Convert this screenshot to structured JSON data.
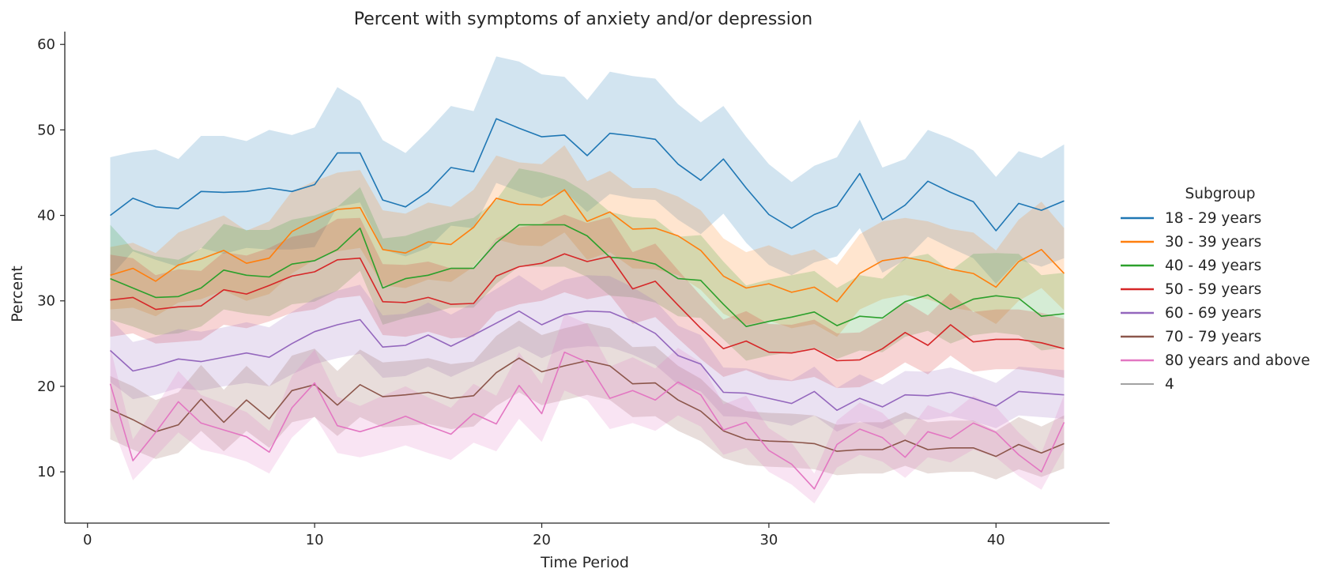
{
  "chart_data": {
    "type": "line",
    "title": "Percent with symptoms of anxiety and/or depression",
    "xlabel": "Time Period",
    "ylabel": "Percent",
    "xlim": [
      -1,
      45
    ],
    "ylim": [
      4,
      61.5
    ],
    "xticks": [
      0,
      10,
      20,
      30,
      40
    ],
    "yticks": [
      10,
      20,
      30,
      40,
      50,
      60
    ],
    "grid": false,
    "legend": {
      "title": "Subgroup",
      "placement": "right",
      "extra_entry": {
        "label": "4",
        "color": "#444444"
      }
    },
    "x": [
      1,
      2,
      3,
      4,
      5,
      6,
      7,
      8,
      9,
      10,
      11,
      12,
      13,
      14,
      15,
      16,
      17,
      18,
      19,
      20,
      21,
      22,
      23,
      24,
      25,
      26,
      27,
      28,
      29,
      30,
      31,
      32,
      33,
      34,
      35,
      36,
      37,
      38,
      39,
      40,
      41,
      42,
      43
    ],
    "series": [
      {
        "name": "18 - 29 years",
        "color": "#1f77b4",
        "values": [
          40.0,
          42.0,
          41.0,
          40.8,
          42.8,
          42.7,
          42.8,
          43.2,
          42.8,
          43.6,
          47.3,
          47.3,
          41.8,
          41.0,
          42.8,
          45.6,
          45.1,
          51.3,
          50.2,
          49.2,
          49.4,
          47.0,
          49.6,
          49.3,
          48.9,
          46.0,
          44.1,
          46.6,
          43.2,
          40.1,
          38.5,
          40.1,
          41.1,
          44.9,
          39.5,
          41.2,
          44.0,
          42.7,
          41.6,
          38.2,
          41.4,
          40.6,
          41.7
        ],
        "lower": [
          32.8,
          35.8,
          34.8,
          34.0,
          36.2,
          35.5,
          36.2,
          36.0,
          36.0,
          36.3,
          41.0,
          41.5,
          36.0,
          35.2,
          36.2,
          38.8,
          38.5,
          43.8,
          42.8,
          42.0,
          42.8,
          40.4,
          42.5,
          42.0,
          41.8,
          39.5,
          37.8,
          40.2,
          36.8,
          34.2,
          33.0,
          34.5,
          35.2,
          38.5,
          33.3,
          34.8,
          37.5,
          36.2,
          35.0,
          32.0,
          34.8,
          34.0,
          35.0
        ],
        "upper": [
          46.8,
          47.4,
          47.7,
          46.6,
          49.3,
          49.3,
          48.7,
          50.0,
          49.4,
          50.3,
          55.0,
          53.4,
          48.8,
          47.3,
          49.9,
          52.8,
          52.2,
          58.6,
          58.0,
          56.5,
          56.2,
          53.5,
          56.8,
          56.3,
          56.0,
          53.0,
          50.9,
          52.8,
          49.2,
          46.0,
          43.9,
          45.8,
          46.8,
          51.2,
          45.6,
          46.6,
          50.0,
          49.0,
          47.6,
          44.5,
          47.5,
          46.7,
          48.3
        ]
      },
      {
        "name": "30 - 39 years",
        "color": "#ff7f0e",
        "values": [
          33.0,
          33.8,
          32.3,
          34.2,
          34.9,
          35.9,
          34.4,
          35.0,
          38.1,
          39.5,
          40.7,
          40.9,
          36.0,
          35.6,
          36.9,
          36.6,
          38.6,
          42.0,
          41.3,
          41.2,
          43.0,
          39.3,
          40.4,
          38.4,
          38.5,
          37.6,
          35.9,
          32.9,
          31.5,
          32.0,
          31.0,
          31.6,
          29.9,
          33.2,
          34.7,
          35.1,
          34.6,
          33.7,
          33.2,
          31.6,
          34.6,
          36.0,
          33.2
        ],
        "lower": [
          29.0,
          29.2,
          28.2,
          29.8,
          30.2,
          31.2,
          30.0,
          30.8,
          33.2,
          34.8,
          35.8,
          36.2,
          31.8,
          31.5,
          32.5,
          32.2,
          34.0,
          37.2,
          36.5,
          36.4,
          38.0,
          34.8,
          35.7,
          33.8,
          33.7,
          33.0,
          31.3,
          28.5,
          27.2,
          27.7,
          26.8,
          27.3,
          25.8,
          29.0,
          30.2,
          30.7,
          30.2,
          29.2,
          28.8,
          27.3,
          30.0,
          31.5,
          28.9
        ],
        "upper": [
          36.3,
          36.8,
          35.6,
          38.0,
          39.0,
          40.0,
          38.2,
          39.3,
          42.8,
          44.0,
          45.0,
          45.3,
          40.6,
          40.2,
          41.5,
          41.0,
          43.0,
          47.0,
          46.2,
          46.0,
          48.2,
          44.0,
          45.2,
          43.2,
          43.2,
          42.2,
          40.6,
          37.3,
          35.7,
          36.5,
          35.3,
          36.0,
          34.2,
          37.8,
          39.3,
          39.7,
          39.3,
          38.4,
          38.0,
          35.9,
          39.5,
          41.6,
          38.5
        ]
      },
      {
        "name": "40 - 49 years",
        "color": "#2ca02c",
        "values": [
          32.6,
          31.5,
          30.4,
          30.5,
          31.5,
          33.6,
          33.0,
          32.8,
          34.3,
          34.7,
          36.0,
          38.5,
          31.5,
          32.6,
          33.0,
          33.8,
          33.8,
          36.8,
          38.9,
          38.9,
          38.9,
          37.6,
          35.1,
          34.9,
          34.3,
          32.6,
          32.4,
          29.6,
          27.0,
          27.6,
          28.1,
          28.7,
          27.1,
          28.2,
          28.0,
          29.9,
          30.7,
          29.0,
          30.2,
          30.6,
          30.3,
          28.2,
          28.5
        ],
        "lower": [
          27.8,
          27.0,
          26.0,
          26.2,
          27.0,
          29.0,
          28.5,
          28.2,
          29.6,
          29.9,
          31.2,
          33.5,
          27.2,
          28.0,
          28.5,
          29.2,
          29.2,
          32.0,
          34.0,
          34.0,
          34.0,
          32.8,
          30.6,
          30.4,
          29.8,
          28.2,
          28.0,
          25.5,
          23.0,
          23.6,
          24.0,
          24.5,
          23.2,
          24.2,
          24.0,
          25.8,
          26.5,
          25.0,
          26.0,
          26.3,
          26.0,
          24.2,
          24.5
        ],
        "upper": [
          38.9,
          36.0,
          35.2,
          34.8,
          36.1,
          39.0,
          38.3,
          38.3,
          39.5,
          40.0,
          41.0,
          43.3,
          37.3,
          37.6,
          38.5,
          39.2,
          39.7,
          41.8,
          45.5,
          45.0,
          44.2,
          42.6,
          40.4,
          39.8,
          39.6,
          37.5,
          37.7,
          34.6,
          31.8,
          32.5,
          33.0,
          33.5,
          31.5,
          33.0,
          32.6,
          35.0,
          35.5,
          33.5,
          35.5,
          35.6,
          35.5,
          33.0,
          33.3
        ]
      },
      {
        "name": "50 - 59 years",
        "color": "#d62728",
        "values": [
          30.1,
          30.4,
          29.0,
          29.3,
          29.4,
          31.3,
          30.8,
          31.8,
          32.9,
          33.4,
          34.8,
          35.0,
          29.9,
          29.8,
          30.4,
          29.6,
          29.7,
          32.9,
          34.0,
          34.4,
          35.5,
          34.6,
          35.2,
          31.4,
          32.3,
          29.5,
          26.8,
          24.4,
          25.3,
          24.0,
          23.9,
          24.4,
          23.0,
          23.1,
          24.4,
          26.3,
          24.8,
          27.2,
          25.2,
          25.5,
          25.5,
          25.1,
          24.4
        ],
        "lower": [
          25.8,
          26.2,
          25.0,
          25.2,
          25.4,
          27.2,
          26.8,
          27.6,
          28.6,
          29.0,
          30.3,
          30.6,
          26.0,
          25.8,
          26.4,
          25.6,
          25.8,
          28.7,
          29.6,
          30.0,
          31.0,
          30.2,
          30.7,
          27.3,
          28.1,
          25.6,
          23.2,
          21.1,
          21.9,
          20.8,
          20.6,
          21.1,
          19.8,
          19.9,
          21.1,
          22.8,
          21.4,
          23.6,
          21.7,
          22.0,
          22.0,
          21.6,
          21.0
        ],
        "upper": [
          35.4,
          35.0,
          33.0,
          33.7,
          33.5,
          35.7,
          35.3,
          36.2,
          37.5,
          38.0,
          39.6,
          39.7,
          34.3,
          34.2,
          34.6,
          33.8,
          33.8,
          37.3,
          38.6,
          39.0,
          40.1,
          39.1,
          39.8,
          35.7,
          36.7,
          33.6,
          30.6,
          27.8,
          28.8,
          27.3,
          27.2,
          27.8,
          26.2,
          26.3,
          27.8,
          29.9,
          28.3,
          30.9,
          28.7,
          29.0,
          29.0,
          28.6,
          27.9
        ]
      },
      {
        "name": "60 - 69 years",
        "color": "#9467bd",
        "values": [
          24.2,
          21.8,
          22.4,
          23.2,
          22.9,
          23.4,
          23.9,
          23.4,
          25.0,
          26.4,
          27.2,
          27.8,
          24.6,
          24.8,
          26.0,
          24.7,
          26.0,
          27.4,
          28.8,
          27.2,
          28.4,
          28.8,
          28.7,
          27.6,
          26.2,
          23.6,
          22.6,
          19.3,
          19.2,
          18.6,
          18.0,
          19.4,
          17.2,
          18.6,
          17.6,
          19.0,
          18.9,
          19.3,
          18.6,
          17.7,
          19.4,
          19.2,
          19.0
        ],
        "lower": [
          20.5,
          18.5,
          19.0,
          19.8,
          19.5,
          20.0,
          20.4,
          20.0,
          21.4,
          22.6,
          23.3,
          23.8,
          21.0,
          21.2,
          22.3,
          21.1,
          22.3,
          23.5,
          24.7,
          23.3,
          24.4,
          24.7,
          24.6,
          23.7,
          22.5,
          20.2,
          19.4,
          16.5,
          16.4,
          15.9,
          15.4,
          16.6,
          14.7,
          15.9,
          15.0,
          16.2,
          16.1,
          16.5,
          15.9,
          15.1,
          16.6,
          16.4,
          16.2
        ],
        "upper": [
          27.9,
          25.2,
          25.8,
          26.7,
          26.4,
          26.9,
          27.5,
          26.9,
          28.7,
          30.3,
          31.2,
          31.9,
          28.3,
          28.5,
          29.8,
          28.4,
          29.8,
          31.4,
          33.0,
          31.2,
          32.5,
          33.0,
          32.9,
          31.6,
          30.0,
          27.1,
          26.0,
          22.2,
          22.1,
          21.4,
          20.7,
          22.3,
          19.8,
          21.4,
          20.2,
          21.8,
          21.7,
          22.2,
          21.4,
          20.4,
          22.3,
          22.1,
          21.9
        ]
      },
      {
        "name": "70 - 79 years",
        "color": "#8c564b",
        "values": [
          17.3,
          16.1,
          14.7,
          15.5,
          18.5,
          15.8,
          18.4,
          16.2,
          19.5,
          20.2,
          17.8,
          20.2,
          18.8,
          19.0,
          19.3,
          18.6,
          18.9,
          21.6,
          23.3,
          21.7,
          22.4,
          23.0,
          22.4,
          20.3,
          20.4,
          18.4,
          17.1,
          14.8,
          13.8,
          13.6,
          13.5,
          13.3,
          12.4,
          12.6,
          12.6,
          13.7,
          12.6,
          12.8,
          12.8,
          11.8,
          13.2,
          12.2,
          13.3
        ],
        "lower": [
          13.8,
          12.6,
          11.5,
          12.2,
          14.8,
          12.4,
          14.8,
          12.8,
          15.8,
          16.4,
          14.2,
          16.4,
          15.2,
          15.4,
          15.6,
          15.0,
          15.3,
          17.7,
          19.3,
          17.8,
          18.4,
          19.0,
          18.4,
          16.4,
          16.5,
          14.8,
          13.6,
          11.6,
          10.8,
          10.6,
          10.5,
          10.3,
          9.6,
          9.8,
          9.8,
          10.7,
          9.8,
          10.0,
          10.0,
          9.1,
          10.3,
          9.4,
          10.4
        ],
        "upper": [
          21.2,
          20.0,
          18.4,
          19.3,
          22.5,
          19.6,
          22.4,
          20.0,
          23.6,
          24.4,
          21.8,
          24.3,
          22.8,
          23.0,
          23.3,
          22.6,
          22.9,
          25.9,
          27.7,
          26.0,
          26.8,
          27.4,
          26.8,
          24.6,
          24.7,
          22.4,
          20.9,
          18.3,
          17.1,
          16.9,
          16.8,
          16.6,
          15.5,
          15.8,
          15.8,
          17.0,
          15.8,
          16.0,
          16.0,
          14.8,
          16.4,
          15.3,
          16.6
        ]
      },
      {
        "name": "80 years and above",
        "color": "#e377c2",
        "values": [
          20.3,
          11.3,
          14.6,
          18.2,
          15.7,
          14.9,
          14.1,
          12.3,
          17.5,
          20.4,
          15.4,
          14.7,
          15.5,
          16.5,
          15.4,
          14.4,
          16.8,
          15.6,
          20.1,
          16.8,
          24.0,
          22.8,
          18.6,
          19.5,
          18.4,
          20.5,
          19.0,
          14.9,
          15.8,
          12.5,
          10.9,
          8.0,
          13.2,
          15.0,
          14.0,
          11.7,
          14.7,
          13.9,
          15.7,
          14.6,
          12.0,
          10.0,
          15.8
        ],
        "lower": [
          16.0,
          9.0,
          11.8,
          14.6,
          12.6,
          12.0,
          11.2,
          9.8,
          14.0,
          16.5,
          12.2,
          11.7,
          12.3,
          13.1,
          12.2,
          11.4,
          13.4,
          12.4,
          16.2,
          13.5,
          19.5,
          18.4,
          15.0,
          15.7,
          14.8,
          16.6,
          15.3,
          12.0,
          12.8,
          10.0,
          8.5,
          6.3,
          10.5,
          12.0,
          11.2,
          9.3,
          11.7,
          11.1,
          12.6,
          11.7,
          9.5,
          7.9,
          12.7
        ],
        "upper": [
          24.6,
          13.8,
          17.6,
          21.8,
          19.0,
          18.0,
          17.0,
          14.8,
          21.2,
          24.3,
          18.8,
          17.7,
          18.9,
          20.0,
          18.7,
          17.5,
          20.3,
          18.9,
          24.0,
          20.3,
          28.5,
          27.3,
          22.3,
          23.4,
          22.1,
          24.5,
          22.8,
          17.9,
          18.9,
          15.1,
          13.4,
          9.8,
          16.0,
          18.1,
          16.9,
          14.2,
          17.8,
          16.8,
          18.9,
          17.6,
          14.6,
          12.2,
          19.0
        ]
      }
    ]
  }
}
